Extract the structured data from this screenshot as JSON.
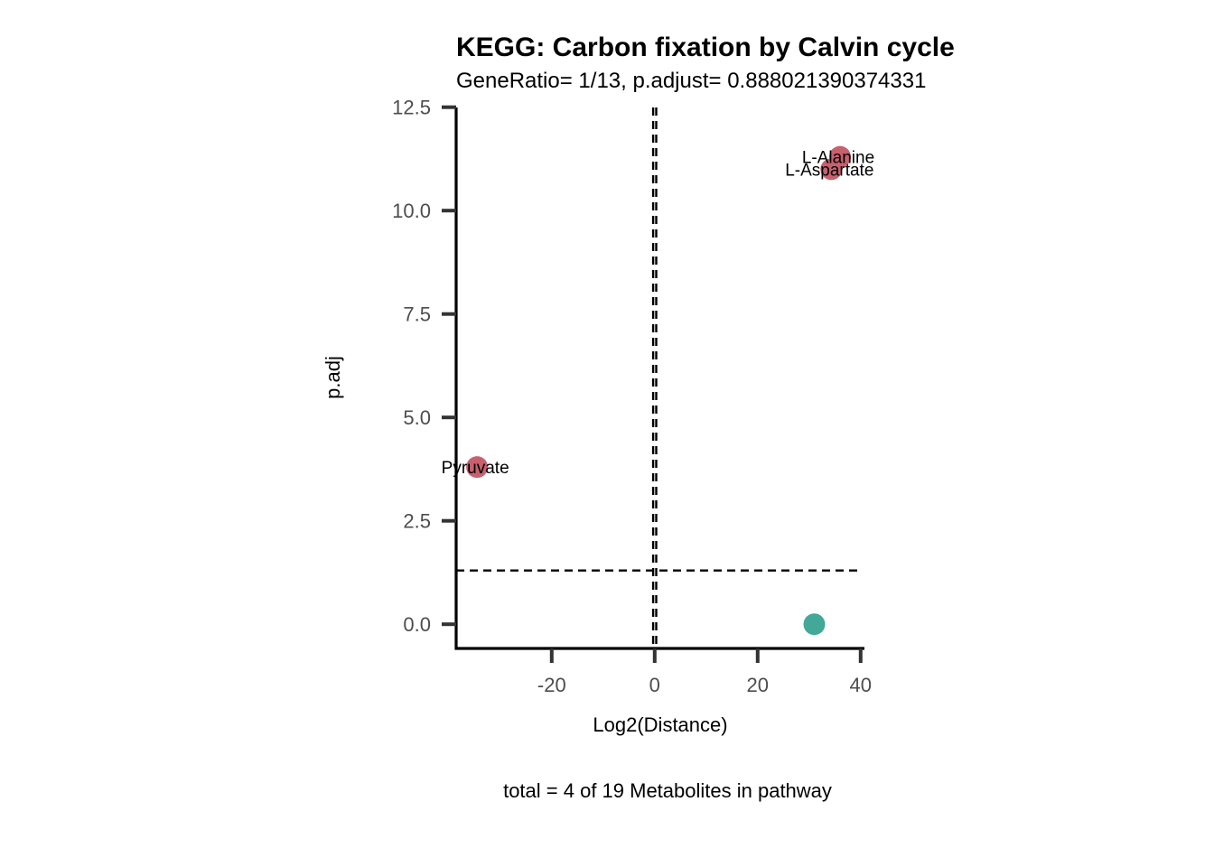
{
  "chart_data": {
    "type": "scatter",
    "title": "KEGG: Carbon fixation by Calvin cycle",
    "subtitle": "GeneRatio= 1/13, p.adjust= 0.888021390374331",
    "xlabel": "Log2(Distance)",
    "ylabel": "p.adj",
    "caption": "total = 4 of 19 Metabolites in pathway",
    "xlim": [
      -38,
      40.5
    ],
    "ylim": [
      -0.6,
      12.5
    ],
    "x_ticks": [
      {
        "value": -20,
        "label": "-20"
      },
      {
        "value": 0,
        "label": "0"
      },
      {
        "value": 20,
        "label": "20"
      },
      {
        "value": 40,
        "label": "40"
      }
    ],
    "y_ticks": [
      {
        "value": 0,
        "label": "0.0"
      },
      {
        "value": 2.5,
        "label": "2.5"
      },
      {
        "value": 5,
        "label": "5.0"
      },
      {
        "value": 7.5,
        "label": "7.5"
      },
      {
        "value": 10,
        "label": "10.0"
      },
      {
        "value": 12.5,
        "label": "12.5"
      }
    ],
    "reference_lines": {
      "vertical": [
        -0.3,
        0.3
      ],
      "horizontal": [
        1.3
      ]
    },
    "points": [
      {
        "x": 36.0,
        "y": 11.3,
        "label": "L-Alanine",
        "color": "#C8606E"
      },
      {
        "x": 34.3,
        "y": 11.0,
        "label": "L-Aspartate",
        "color": "#C8606E"
      },
      {
        "x": -34.5,
        "y": 3.8,
        "label": "Pyruvate",
        "color": "#C8606E"
      },
      {
        "x": 31.0,
        "y": 0.0,
        "label": "",
        "color": "#43A898"
      }
    ],
    "grid": false,
    "legend": "none"
  }
}
